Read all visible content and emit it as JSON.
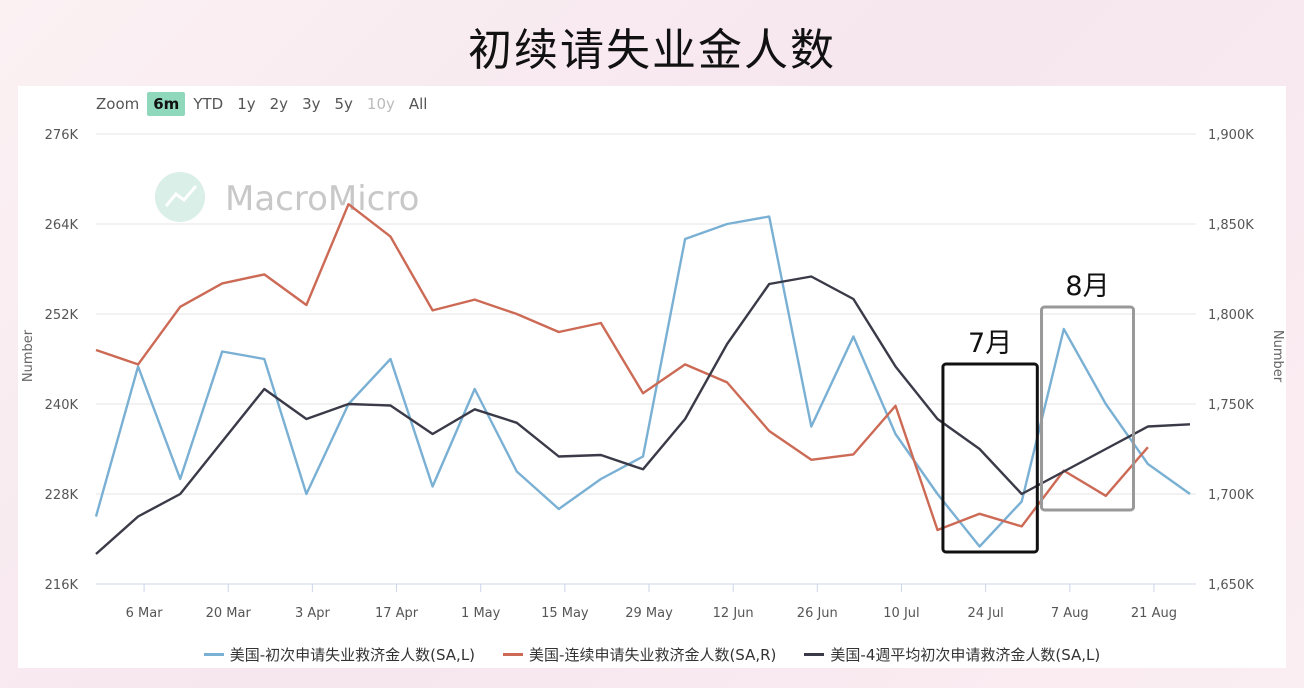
{
  "title": "初续请失业金人数",
  "zoom": {
    "label": "Zoom",
    "options": [
      {
        "label": "6m",
        "state": "active"
      },
      {
        "label": "YTD",
        "state": "normal"
      },
      {
        "label": "1y",
        "state": "normal"
      },
      {
        "label": "2y",
        "state": "normal"
      },
      {
        "label": "3y",
        "state": "normal"
      },
      {
        "label": "5y",
        "state": "normal"
      },
      {
        "label": "10y",
        "state": "disabled"
      },
      {
        "label": "All",
        "state": "normal"
      }
    ]
  },
  "watermark": "MacroMicro",
  "annotations": [
    {
      "label": "7月",
      "color": "#111111",
      "x_from": 10.9,
      "x_to": 26.6,
      "left_from": 1685,
      "left_to": 1690
    },
    {
      "label": "8月",
      "color": "#999999",
      "x_from": 27.3,
      "x_to": 42.6,
      "left_from": 1685,
      "left_to": 1690
    }
  ],
  "chart_data": {
    "type": "line",
    "x_ticks": [
      {
        "x": 6,
        "label": "6 Mar"
      },
      {
        "x": 20,
        "label": "20 Mar"
      },
      {
        "x": 34,
        "label": "3 Apr"
      },
      {
        "x": 48,
        "label": "17 Apr"
      },
      {
        "x": 62,
        "label": "1 May"
      },
      {
        "x": 76,
        "label": "15 May"
      },
      {
        "x": 90,
        "label": "29 May"
      },
      {
        "x": 104,
        "label": "12 Jun"
      },
      {
        "x": 118,
        "label": "26 Jun"
      },
      {
        "x": 132,
        "label": "10 Jul"
      },
      {
        "x": 146,
        "label": "24 Jul"
      },
      {
        "x": 160,
        "label": "7 Aug"
      },
      {
        "x": 174,
        "label": "21 Aug"
      }
    ],
    "x_range": [
      -2,
      181
    ],
    "left_axis": {
      "label": "Number",
      "range": [
        216000,
        276000
      ],
      "ticks": [
        216000,
        228000,
        240000,
        252000,
        264000,
        276000
      ],
      "tick_labels": [
        "216K",
        "228K",
        "240K",
        "252K",
        "264K",
        "276K"
      ]
    },
    "right_axis": {
      "label": "Number",
      "range": [
        1650000,
        1900000
      ],
      "ticks": [
        1650000,
        1700000,
        1750000,
        1800000,
        1850000,
        1900000
      ],
      "tick_labels": [
        "1,650K",
        "1,700K",
        "1,750K",
        "1,800K",
        "1,850K",
        "1,900K"
      ]
    },
    "grid": true,
    "legend_position": "bottom",
    "series": [
      {
        "name": "美国-初次申请失业救济金人数(SA,L)",
        "color": "#7ab0d4",
        "axis": "left",
        "x": [
          -2,
          5,
          12,
          19,
          26,
          33,
          40,
          47,
          54,
          61,
          68,
          75,
          82,
          89,
          96,
          103,
          110,
          117,
          124,
          131,
          138,
          145,
          152,
          159,
          166,
          173,
          180
        ],
        "y": [
          225000,
          245000,
          230000,
          247000,
          246000,
          228000,
          240000,
          246000,
          229000,
          242000,
          231000,
          226000,
          230000,
          233000,
          262000,
          264000,
          265000,
          237000,
          249000,
          236000,
          228000,
          221000,
          227000,
          250000,
          240000,
          232000,
          228000
        ]
      },
      {
        "name": "美国-连续申请失业救济金人数(SA,R)",
        "color": "#cc6a55",
        "axis": "right",
        "x": [
          -2,
          5,
          12,
          19,
          26,
          33,
          40,
          47,
          54,
          61,
          68,
          75,
          82,
          89,
          96,
          103,
          110,
          117,
          124,
          131,
          138,
          145,
          152,
          159,
          166,
          173
        ],
        "y": [
          1780000,
          1772000,
          1804000,
          1817000,
          1822000,
          1805000,
          1861000,
          1843000,
          1802000,
          1808000,
          1800000,
          1790000,
          1795000,
          1756000,
          1772000,
          1762000,
          1735000,
          1719000,
          1722000,
          1749000,
          1680000,
          1689000,
          1682000,
          1713000,
          1699000,
          1726000
        ]
      },
      {
        "name": "美国-4週平均初次申请救济金人数(SA,L)",
        "color": "#3a3a48",
        "axis": "left",
        "x": [
          -2,
          5,
          12,
          19,
          26,
          33,
          40,
          47,
          54,
          61,
          68,
          75,
          82,
          89,
          96,
          103,
          110,
          117,
          124,
          131,
          138,
          145,
          152,
          159,
          166,
          173,
          180
        ],
        "y": [
          220000,
          225000,
          228000,
          235000,
          242000,
          238000,
          240000,
          239800,
          236000,
          239300,
          237500,
          233000,
          233200,
          231300,
          238000,
          248000,
          256000,
          257000,
          254000,
          245000,
          238000,
          234000,
          228000,
          231000,
          234000,
          237000,
          237300
        ]
      }
    ]
  }
}
